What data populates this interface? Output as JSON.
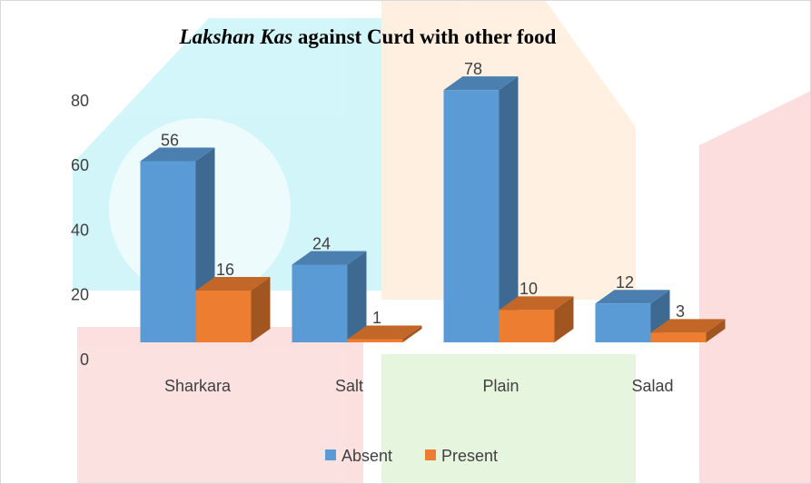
{
  "chart_data": {
    "type": "bar3d",
    "title_parts": [
      "Lakshan Kas",
      "against Curd with other food"
    ],
    "categories": [
      "Sharkara",
      "Salt",
      "Plain",
      "Salad"
    ],
    "series": [
      {
        "name": "Absent",
        "color": "#5b9bd5",
        "values": [
          56,
          24,
          78,
          12
        ]
      },
      {
        "name": "Present",
        "color": "#ed7d31",
        "values": [
          16,
          1,
          10,
          3
        ]
      }
    ],
    "ylim": [
      0,
      80
    ],
    "yticks": [
      0,
      20,
      40,
      60,
      80
    ],
    "grid": false,
    "legend": "bottom"
  }
}
